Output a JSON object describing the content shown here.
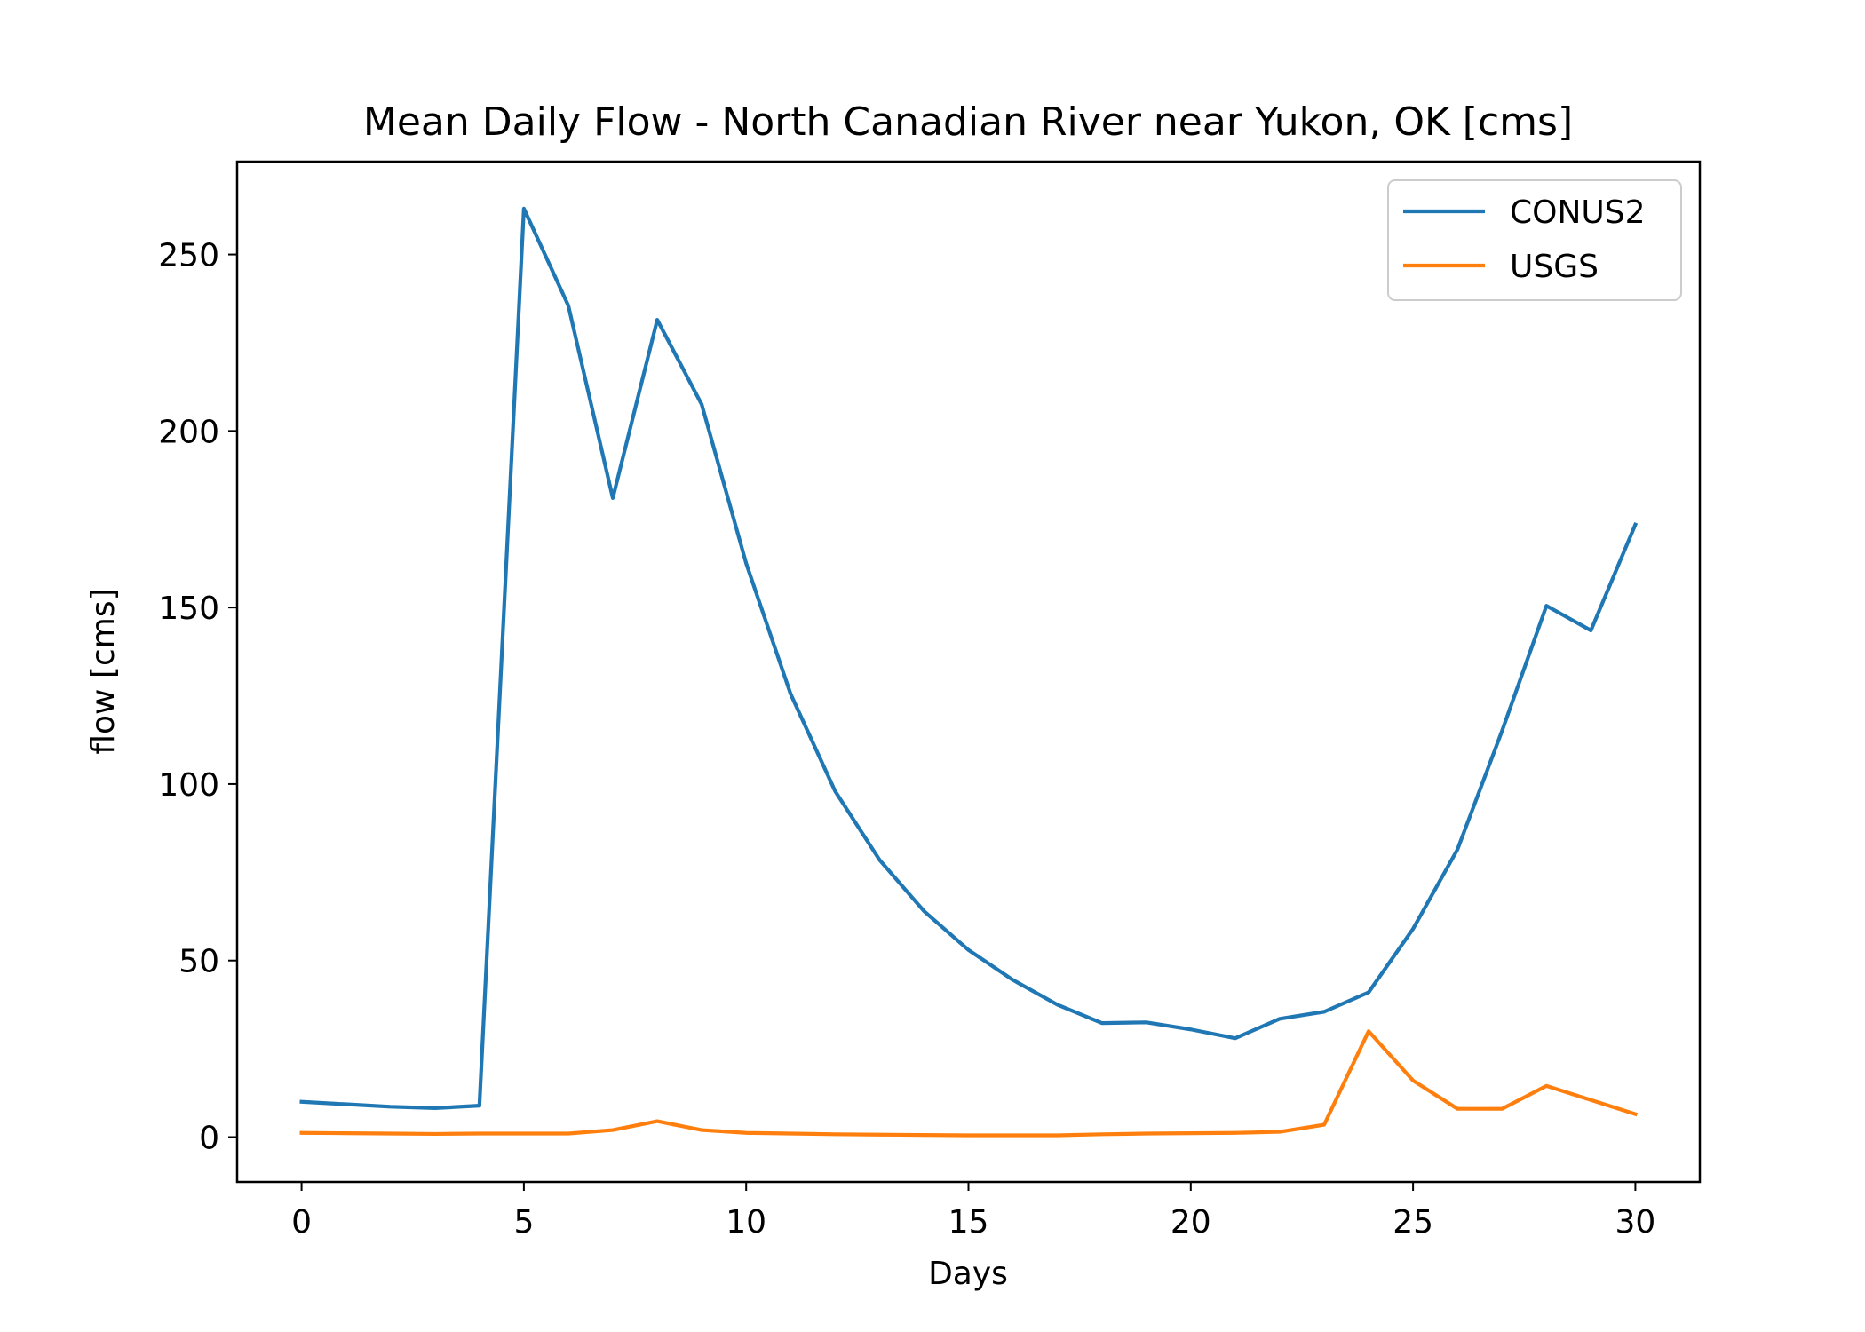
{
  "chart_data": {
    "type": "line",
    "title": "Mean Daily Flow - North Canadian River near Yukon, OK [cms]",
    "xlabel": "Days",
    "ylabel": "flow [cms]",
    "xlim": [
      -1.45,
      31.45
    ],
    "ylim": [
      -12.7,
      276.3
    ],
    "xticks": [
      0,
      5,
      10,
      15,
      20,
      25,
      30
    ],
    "xtick_labels": [
      "0",
      "5",
      "10",
      "15",
      "20",
      "25",
      "30"
    ],
    "yticks": [
      0,
      50,
      100,
      150,
      200,
      250
    ],
    "ytick_labels": [
      "0",
      "50",
      "100",
      "150",
      "200",
      "250"
    ],
    "grid": false,
    "legend_position": "upper right",
    "x": [
      0,
      1,
      2,
      3,
      4,
      5,
      6,
      7,
      8,
      9,
      10,
      11,
      12,
      13,
      14,
      15,
      16,
      17,
      18,
      19,
      20,
      21,
      22,
      23,
      24,
      25,
      26,
      27,
      28,
      29,
      30
    ],
    "series": [
      {
        "name": "CONUS2",
        "color": "#1f77b4",
        "values": [
          10.0,
          9.3,
          8.6,
          8.2,
          8.9,
          263.0,
          235.5,
          181.0,
          231.5,
          207.5,
          162.5,
          125.5,
          98.0,
          78.5,
          64.0,
          53.0,
          44.5,
          37.5,
          32.3,
          32.5,
          30.5,
          28.0,
          33.5,
          35.5,
          41.0,
          59.0,
          81.5,
          115.0,
          150.5,
          143.5,
          173.5
        ]
      },
      {
        "name": "USGS",
        "color": "#ff7f0e",
        "values": [
          1.2,
          1.1,
          1.0,
          0.9,
          1.0,
          1.0,
          1.0,
          2.0,
          4.5,
          2.0,
          1.2,
          1.0,
          0.8,
          0.7,
          0.6,
          0.5,
          0.5,
          0.5,
          0.8,
          1.0,
          1.1,
          1.2,
          1.5,
          3.5,
          30.0,
          16.0,
          8.0,
          8.0,
          14.5,
          10.5,
          6.5
        ]
      }
    ]
  }
}
